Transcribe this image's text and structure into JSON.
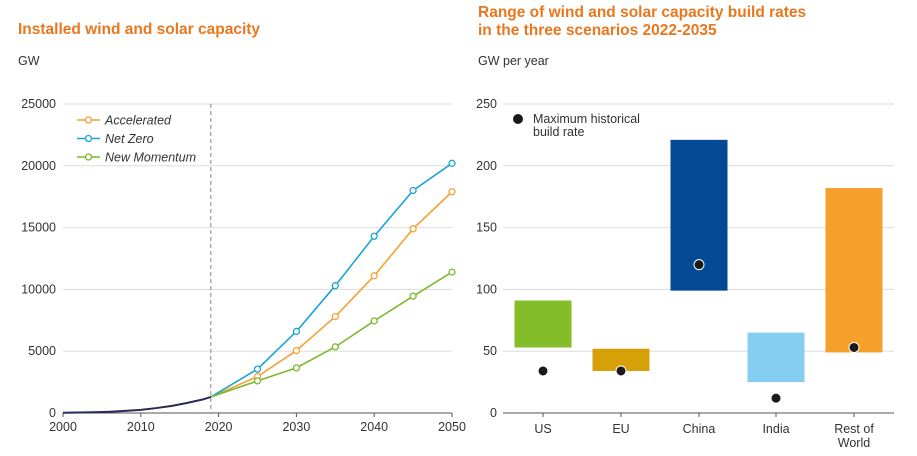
{
  "left_panel": {
    "title": "Installed wind and solar capacity",
    "unit": "GW"
  },
  "right_panel": {
    "title_line1": "Range of wind and solar capacity build rates",
    "title_line2": "in the three scenarios 2022-2035",
    "unit": "GW per year",
    "legend_line1": "Maximum historical",
    "legend_line2": "build rate"
  },
  "colors": {
    "accelerated": "#f5a033",
    "net_zero": "#1fa3d6",
    "new_momentum": "#7db92d",
    "history": "#2a2a5a",
    "US": "#84bd2a",
    "EU": "#d8a008",
    "China": "#034a94",
    "India": "#86cdf2",
    "Rest of World": "#f5a02a"
  },
  "chart_data": [
    {
      "type": "line",
      "title": "Installed wind and solar capacity",
      "ylabel": "GW",
      "xlim": [
        2000,
        2050
      ],
      "ylim": [
        0,
        25000
      ],
      "xticks": [
        "2000",
        "2010",
        "2020",
        "2030",
        "2040",
        "2050"
      ],
      "yticks": [
        "0",
        "5000",
        "10000",
        "15000",
        "20000",
        "25000"
      ],
      "reference_line_x": 2019,
      "history": {
        "x": [
          2000,
          2002,
          2004,
          2006,
          2008,
          2010,
          2012,
          2014,
          2016,
          2018,
          2019
        ],
        "y": [
          20,
          40,
          60,
          100,
          170,
          250,
          400,
          580,
          820,
          1100,
          1300
        ]
      },
      "series": [
        {
          "name": "Accelerated",
          "x": [
            2019,
            2025,
            2030,
            2035,
            2040,
            2045,
            2050
          ],
          "y": [
            1300,
            2950,
            5050,
            7800,
            11100,
            14900,
            17900
          ]
        },
        {
          "name": "Net Zero",
          "x": [
            2019,
            2025,
            2030,
            2035,
            2040,
            2045,
            2050
          ],
          "y": [
            1300,
            3550,
            6600,
            10300,
            14300,
            18000,
            20200
          ]
        },
        {
          "name": "New Momentum",
          "x": [
            2019,
            2025,
            2030,
            2035,
            2040,
            2045,
            2050
          ],
          "y": [
            1300,
            2600,
            3650,
            5350,
            7450,
            9450,
            11400
          ]
        }
      ],
      "legend": "top-left"
    },
    {
      "type": "bar",
      "title": "Range of wind and solar capacity build rates in the three scenarios 2022-2035",
      "ylabel": "GW per year",
      "ylim": [
        0,
        250
      ],
      "yticks": [
        "0",
        "50",
        "100",
        "150",
        "200",
        "250"
      ],
      "categories": [
        "US",
        "EU",
        "China",
        "India",
        "Rest of World"
      ],
      "ranges": [
        [
          53,
          91
        ],
        [
          34,
          52
        ],
        [
          99,
          221
        ],
        [
          25,
          65
        ],
        [
          49,
          182
        ]
      ],
      "max_historical": [
        34,
        34,
        120,
        12,
        53
      ],
      "legend": "top-left"
    }
  ]
}
